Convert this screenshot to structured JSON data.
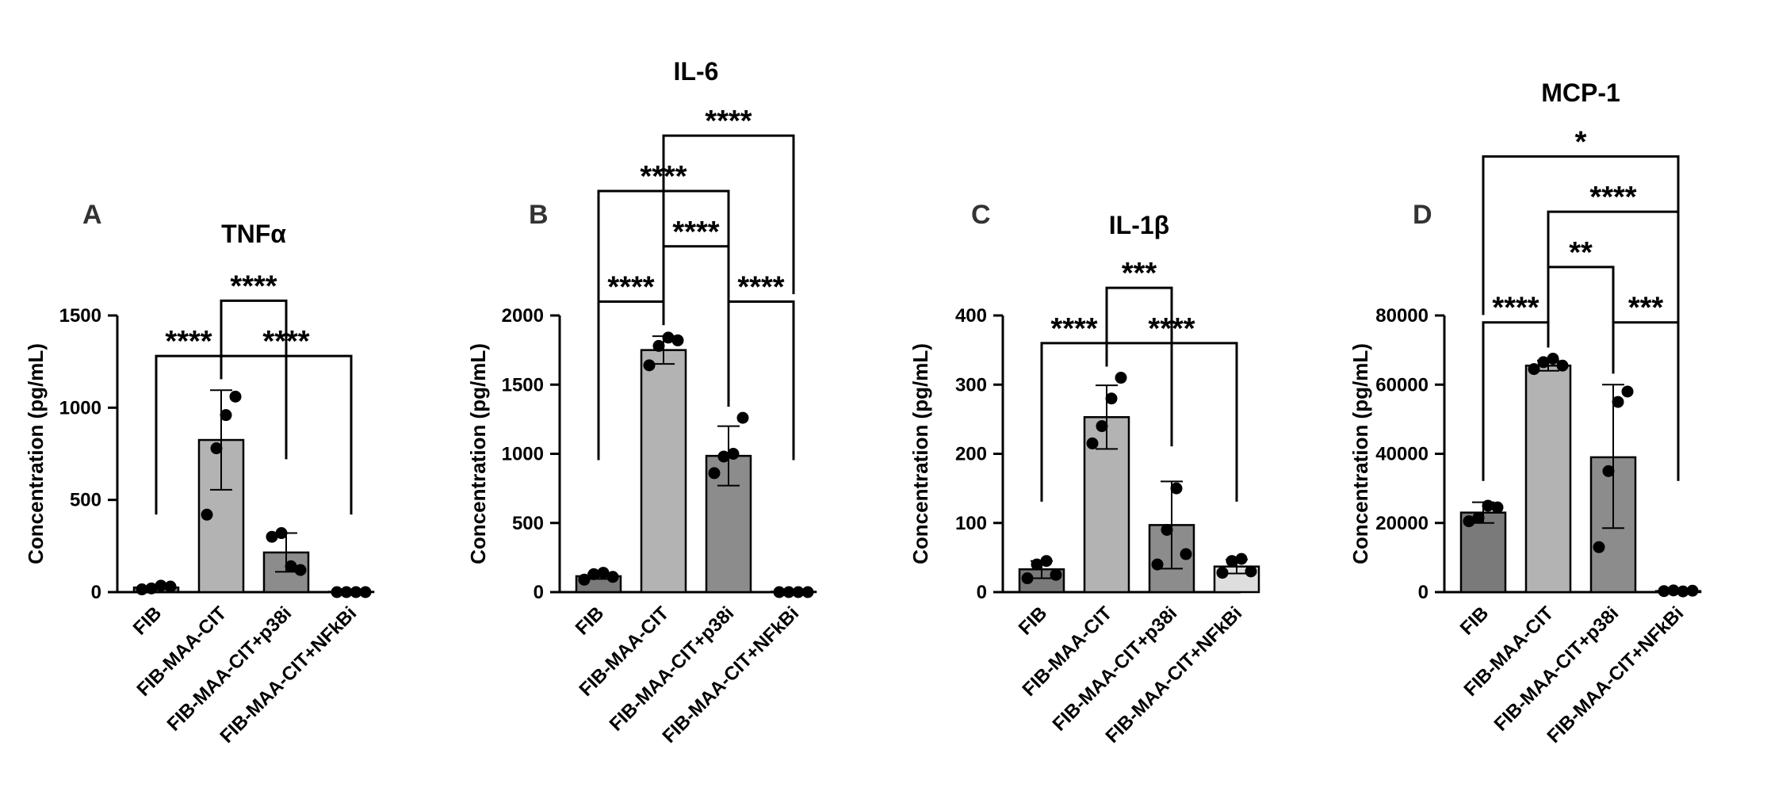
{
  "figure": {
    "background": "#ffffff",
    "bar_colors": [
      "#7a7a7a",
      "#b3b3b3",
      "#8c8c8c",
      "#dedede"
    ]
  },
  "chart_data": [
    {
      "panel": "A",
      "title": "TNFα",
      "type": "bar",
      "ylabel": "Concentration (pg/mL)",
      "ylim": [
        0,
        1500
      ],
      "yticks": [
        0,
        500,
        1000,
        1500
      ],
      "ytick_labels": [
        "0",
        "500",
        "1000",
        "1500"
      ],
      "categories": [
        "FIB",
        "FIB-MAA-CIT",
        "FIB-MAA-CIT+p38i",
        "FIB-MAA-CIT+NFkBi"
      ],
      "values": [
        25,
        825,
        215,
        2
      ],
      "errors": [
        [
          18,
          32
        ],
        [
          555,
          1095
        ],
        [
          110,
          320
        ],
        [
          0,
          4
        ]
      ],
      "points": [
        [
          15,
          20,
          35,
          30
        ],
        [
          420,
          780,
          960,
          1060
        ],
        [
          300,
          320,
          140,
          120
        ],
        [
          0,
          0,
          0,
          0
        ]
      ],
      "comparisons": [
        {
          "from": 1,
          "to": 2,
          "label": "****",
          "y": 1580
        },
        {
          "from": 0,
          "to": 1,
          "label": "****",
          "y": 1280
        },
        {
          "from": 1,
          "to": 3,
          "label": "****",
          "y": 1280
        }
      ]
    },
    {
      "panel": "B",
      "title": "IL-6",
      "type": "bar",
      "ylabel": "Concentration (pg/mL)",
      "ylim": [
        0,
        2000
      ],
      "yticks": [
        0,
        500,
        1000,
        1500,
        2000
      ],
      "ytick_labels": [
        "0",
        "500",
        "1000",
        "1500",
        "2000"
      ],
      "categories": [
        "FIB",
        "FIB-MAA-CIT",
        "FIB-MAA-CIT+p38i",
        "FIB-MAA-CIT+NFkBi"
      ],
      "values": [
        115,
        1750,
        985,
        3
      ],
      "errors": [
        [
          95,
          135
        ],
        [
          1650,
          1850
        ],
        [
          770,
          1200
        ],
        [
          0,
          6
        ]
      ],
      "points": [
        [
          90,
          130,
          140,
          110
        ],
        [
          1640,
          1780,
          1840,
          1820
        ],
        [
          860,
          980,
          1000,
          1260
        ],
        [
          0,
          0,
          0,
          0
        ]
      ],
      "comparisons": [
        {
          "from": 0,
          "to": 1,
          "label": "****",
          "y": 2100
        },
        {
          "from": 2,
          "to": 3,
          "label": "****",
          "y": 2100
        },
        {
          "from": 1,
          "to": 2,
          "label": "****",
          "y": 2500
        },
        {
          "from": 0,
          "to": 2,
          "label": "****",
          "y": 2900
        },
        {
          "from": 1,
          "to": 3,
          "label": "****",
          "y": 3300
        }
      ]
    },
    {
      "panel": "C",
      "title": "IL-1β",
      "type": "bar",
      "ylabel": "Concentration (pg/mL)",
      "ylim": [
        0,
        400
      ],
      "yticks": [
        0,
        100,
        200,
        300,
        400
      ],
      "ytick_labels": [
        "0",
        "100",
        "200",
        "300",
        "400"
      ],
      "categories": [
        "FIB",
        "FIB-MAA-CIT",
        "FIB-MAA-CIT+p38i",
        "FIB-MAA-CIT+NFkBi"
      ],
      "values": [
        33,
        253,
        97,
        37
      ],
      "errors": [
        [
          20,
          45
        ],
        [
          207,
          299
        ],
        [
          34,
          160
        ],
        [
          27,
          47
        ]
      ],
      "points": [
        [
          20,
          40,
          45,
          25
        ],
        [
          215,
          240,
          280,
          310
        ],
        [
          40,
          90,
          150,
          55
        ],
        [
          28,
          45,
          48,
          30
        ]
      ],
      "comparisons": [
        {
          "from": 0,
          "to": 1,
          "label": "****",
          "y": 360
        },
        {
          "from": 1,
          "to": 3,
          "label": "****",
          "y": 360
        },
        {
          "from": 1,
          "to": 2,
          "label": "***",
          "y": 440
        }
      ]
    },
    {
      "panel": "D",
      "title": "MCP-1",
      "type": "bar",
      "ylabel": "Concentration (pg/mL)",
      "ylim": [
        0,
        80000
      ],
      "yticks": [
        0,
        20000,
        40000,
        60000,
        80000
      ],
      "ytick_labels": [
        "0",
        "20000",
        "40000",
        "60000",
        "80000"
      ],
      "categories": [
        "FIB",
        "FIB-MAA-CIT",
        "FIB-MAA-CIT+p38i",
        "FIB-MAA-CIT+NFkBi"
      ],
      "values": [
        23000,
        65500,
        39000,
        300
      ],
      "errors": [
        [
          20000,
          26000
        ],
        [
          64000,
          67000
        ],
        [
          18500,
          60000
        ],
        [
          0,
          600
        ]
      ],
      "points": [
        [
          20500,
          21500,
          25000,
          24500
        ],
        [
          64500,
          66500,
          67500,
          65500
        ],
        [
          13000,
          35000,
          55000,
          58000
        ],
        [
          300,
          500,
          200,
          400
        ]
      ],
      "comparisons": [
        {
          "from": 0,
          "to": 1,
          "label": "****",
          "y": 78000
        },
        {
          "from": 2,
          "to": 3,
          "label": "***",
          "y": 78000
        },
        {
          "from": 1,
          "to": 2,
          "label": "**",
          "y": 94000
        },
        {
          "from": 1,
          "to": 3,
          "label": "****",
          "y": 110000
        },
        {
          "from": 0,
          "to": 3,
          "label": "*",
          "y": 126000
        }
      ]
    }
  ]
}
